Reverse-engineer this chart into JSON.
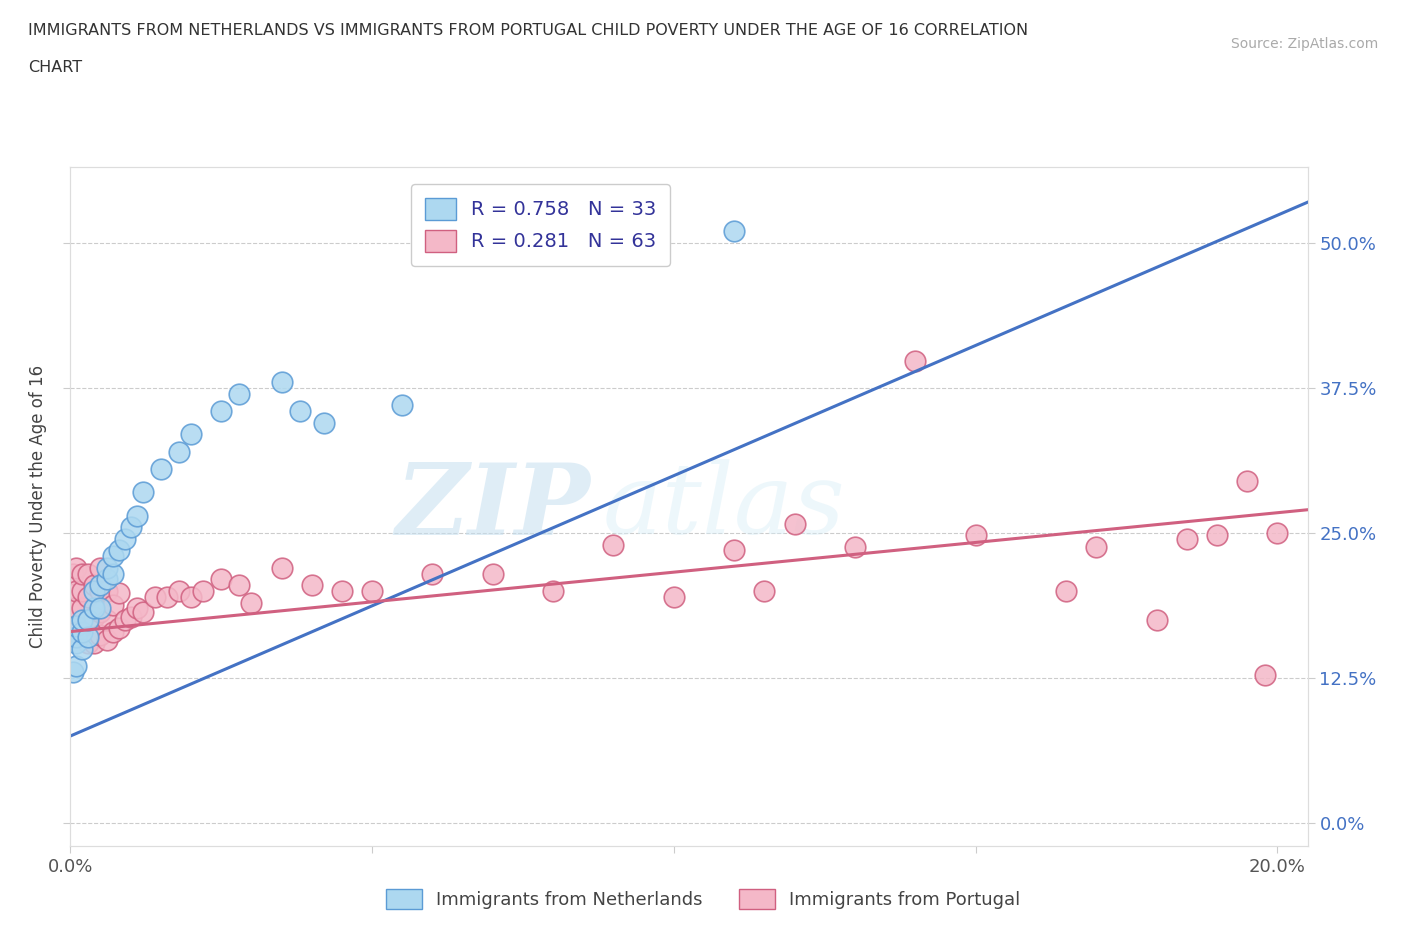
{
  "title_line1": "IMMIGRANTS FROM NETHERLANDS VS IMMIGRANTS FROM PORTUGAL CHILD POVERTY UNDER THE AGE OF 16 CORRELATION",
  "title_line2": "CHART",
  "source": "Source: ZipAtlas.com",
  "ylabel": "Child Poverty Under the Age of 16",
  "xlim": [
    0.0,
    0.205
  ],
  "ylim": [
    -0.02,
    0.565
  ],
  "y_ticks": [
    0.0,
    0.125,
    0.25,
    0.375,
    0.5
  ],
  "y_tick_labels_right": [
    "0.0%",
    "12.5%",
    "25.0%",
    "37.5%",
    "50.0%"
  ],
  "x_tick_positions": [
    0.0,
    0.05,
    0.1,
    0.15,
    0.2
  ],
  "x_tick_labels": [
    "0.0%",
    "",
    "",
    "",
    "20.0%"
  ],
  "blue_face_color": "#add8f0",
  "blue_edge_color": "#5b9bd5",
  "pink_face_color": "#f4b8c8",
  "pink_edge_color": "#d06080",
  "blue_line_color": "#4472c4",
  "pink_line_color": "#d06080",
  "nl_R": "0.758",
  "nl_N": "33",
  "pt_R": "0.281",
  "pt_N": "63",
  "watermark_zip": "ZIP",
  "watermark_atlas": "atlas",
  "nl_line_x": [
    0.0,
    0.205
  ],
  "nl_line_y": [
    0.075,
    0.535
  ],
  "pt_line_x": [
    0.0,
    0.205
  ],
  "pt_line_y": [
    0.165,
    0.27
  ],
  "nl_scatter_x": [
    0.0005,
    0.001,
    0.001,
    0.001,
    0.001,
    0.002,
    0.002,
    0.002,
    0.003,
    0.003,
    0.004,
    0.004,
    0.005,
    0.005,
    0.006,
    0.006,
    0.007,
    0.007,
    0.008,
    0.009,
    0.01,
    0.011,
    0.012,
    0.015,
    0.018,
    0.02,
    0.025,
    0.028,
    0.035,
    0.038,
    0.042,
    0.055,
    0.11
  ],
  "nl_scatter_y": [
    0.13,
    0.135,
    0.155,
    0.16,
    0.17,
    0.15,
    0.165,
    0.175,
    0.16,
    0.175,
    0.185,
    0.2,
    0.185,
    0.205,
    0.21,
    0.22,
    0.215,
    0.23,
    0.235,
    0.245,
    0.255,
    0.265,
    0.285,
    0.305,
    0.32,
    0.335,
    0.355,
    0.37,
    0.38,
    0.355,
    0.345,
    0.36,
    0.51
  ],
  "pt_scatter_x": [
    0.0005,
    0.0005,
    0.001,
    0.001,
    0.001,
    0.001,
    0.002,
    0.002,
    0.002,
    0.002,
    0.003,
    0.003,
    0.003,
    0.003,
    0.004,
    0.004,
    0.004,
    0.005,
    0.005,
    0.005,
    0.005,
    0.006,
    0.006,
    0.006,
    0.007,
    0.007,
    0.008,
    0.008,
    0.009,
    0.01,
    0.011,
    0.012,
    0.014,
    0.016,
    0.018,
    0.02,
    0.022,
    0.025,
    0.028,
    0.03,
    0.035,
    0.04,
    0.045,
    0.05,
    0.06,
    0.07,
    0.08,
    0.09,
    0.1,
    0.11,
    0.115,
    0.12,
    0.13,
    0.14,
    0.15,
    0.165,
    0.17,
    0.18,
    0.185,
    0.19,
    0.195,
    0.198,
    0.2
  ],
  "pt_scatter_y": [
    0.185,
    0.215,
    0.165,
    0.185,
    0.2,
    0.22,
    0.165,
    0.185,
    0.2,
    0.215,
    0.155,
    0.175,
    0.195,
    0.215,
    0.155,
    0.178,
    0.205,
    0.162,
    0.182,
    0.2,
    0.22,
    0.158,
    0.175,
    0.2,
    0.165,
    0.188,
    0.168,
    0.198,
    0.175,
    0.178,
    0.185,
    0.182,
    0.195,
    0.195,
    0.2,
    0.195,
    0.2,
    0.21,
    0.205,
    0.19,
    0.22,
    0.205,
    0.2,
    0.2,
    0.215,
    0.215,
    0.2,
    0.24,
    0.195,
    0.235,
    0.2,
    0.258,
    0.238,
    0.398,
    0.248,
    0.2,
    0.238,
    0.175,
    0.245,
    0.248,
    0.295,
    0.128,
    0.25
  ]
}
